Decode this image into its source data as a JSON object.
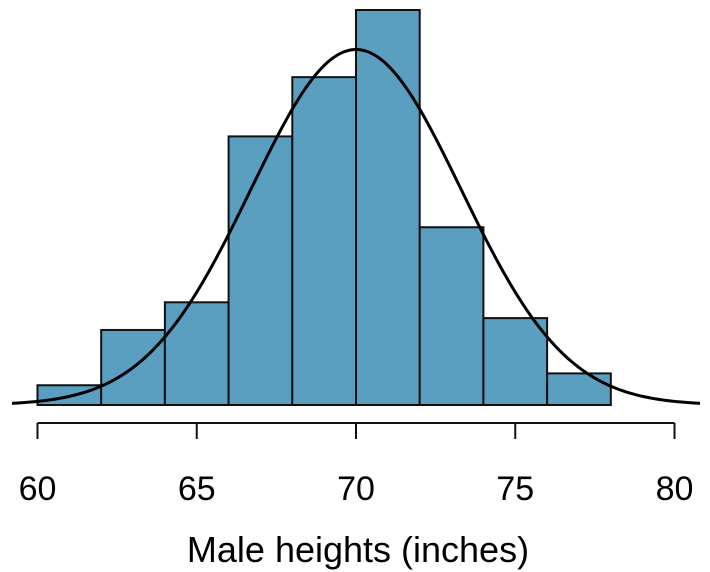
{
  "chart_data": {
    "type": "bar",
    "xlabel": "Male heights (inches)",
    "ylabel": "",
    "xlim": [
      59.2,
      80.8
    ],
    "xticks": [
      60,
      65,
      70,
      75,
      80
    ],
    "bins": [
      {
        "x0": 60,
        "x1": 62,
        "value": 0.05
      },
      {
        "x0": 62,
        "x1": 64,
        "value": 0.19
      },
      {
        "x0": 64,
        "x1": 66,
        "value": 0.26
      },
      {
        "x0": 66,
        "x1": 68,
        "value": 0.68
      },
      {
        "x0": 68,
        "x1": 70,
        "value": 0.83
      },
      {
        "x0": 70,
        "x1": 72,
        "value": 1.0
      },
      {
        "x0": 72,
        "x1": 74,
        "value": 0.45
      },
      {
        "x0": 74,
        "x1": 76,
        "value": 0.22
      },
      {
        "x0": 76,
        "x1": 78,
        "value": 0.08
      }
    ],
    "overlay_curve": {
      "type": "normal",
      "mean": 70,
      "sd": 3.3,
      "peak": 0.9
    },
    "colors": {
      "bar_fill": "#5a9fc0",
      "bar_stroke": "#111111",
      "curve": "#000000"
    },
    "grid": false
  }
}
